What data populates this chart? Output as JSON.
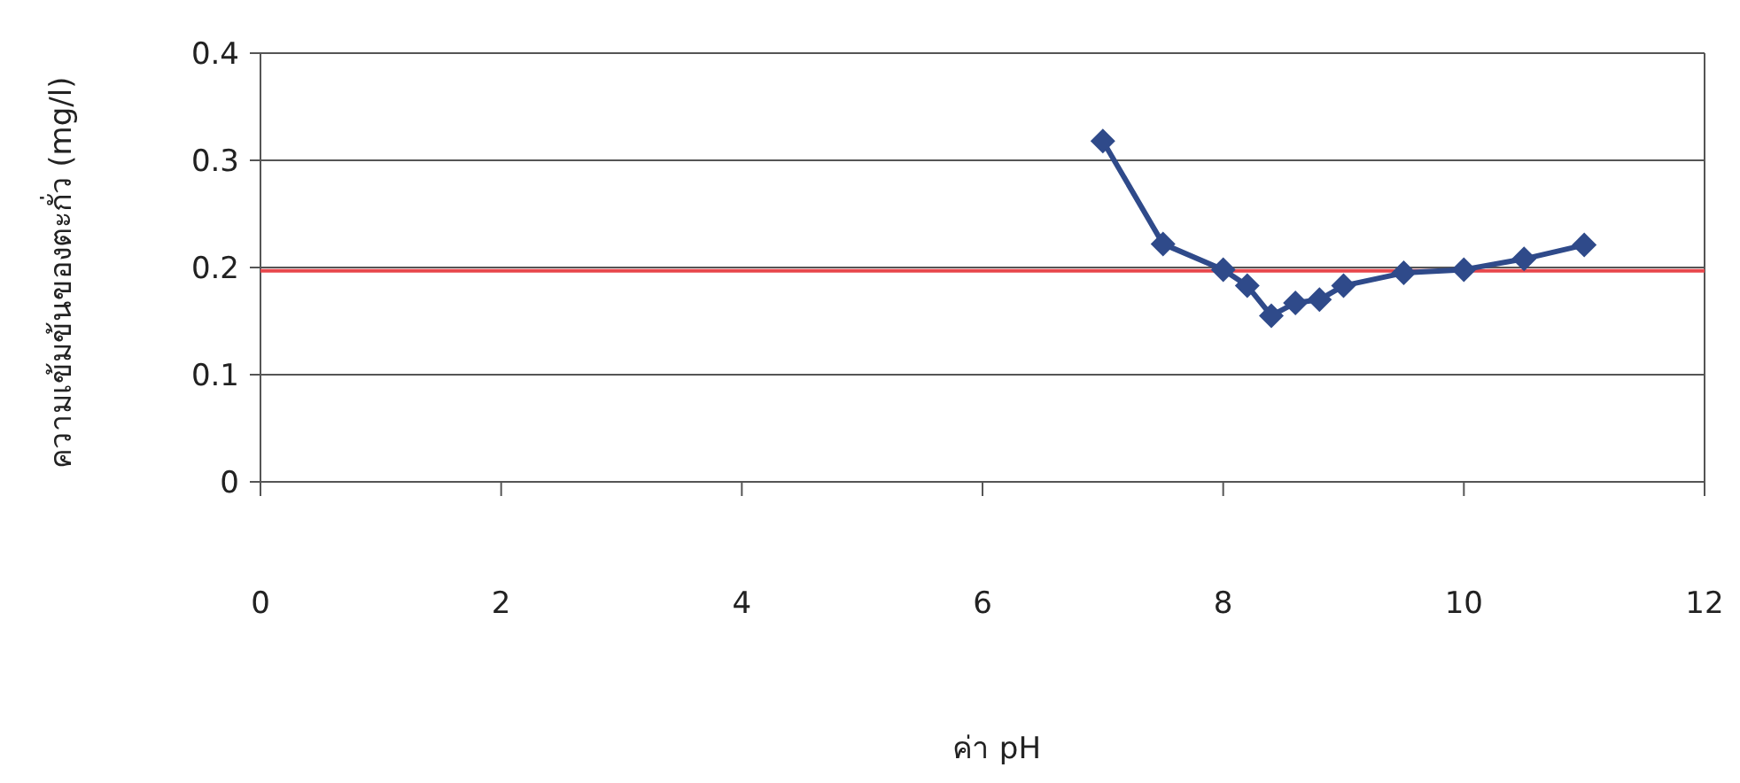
{
  "chart_data": {
    "type": "line",
    "xlabel": "ค่า pH",
    "ylabel": "ความเข้มข้นของตะกั่ว (mg/l)",
    "x": [
      7,
      7.5,
      8,
      8.2,
      8.4,
      8.6,
      8.8,
      9,
      9.5,
      10,
      10.5,
      11
    ],
    "series": [
      {
        "color": "#2f4a8a",
        "values": [
          0.318,
          0.222,
          0.198,
          0.183,
          0.155,
          0.167,
          0.17,
          0.183,
          0.195,
          0.198,
          0.208,
          0.221
        ]
      }
    ],
    "xlim": [
      0,
      12
    ],
    "ylim": [
      0,
      0.4
    ],
    "xticks": [
      0,
      2,
      4,
      6,
      8,
      10,
      12
    ],
    "yticks": [
      0,
      0.1,
      0.2,
      0.3,
      0.4
    ],
    "ref_lines": [
      {
        "axis": "y",
        "value": 0.197,
        "color": "#e8474c"
      }
    ],
    "grid": "y",
    "marker": "diamond",
    "line_style": "solid"
  }
}
